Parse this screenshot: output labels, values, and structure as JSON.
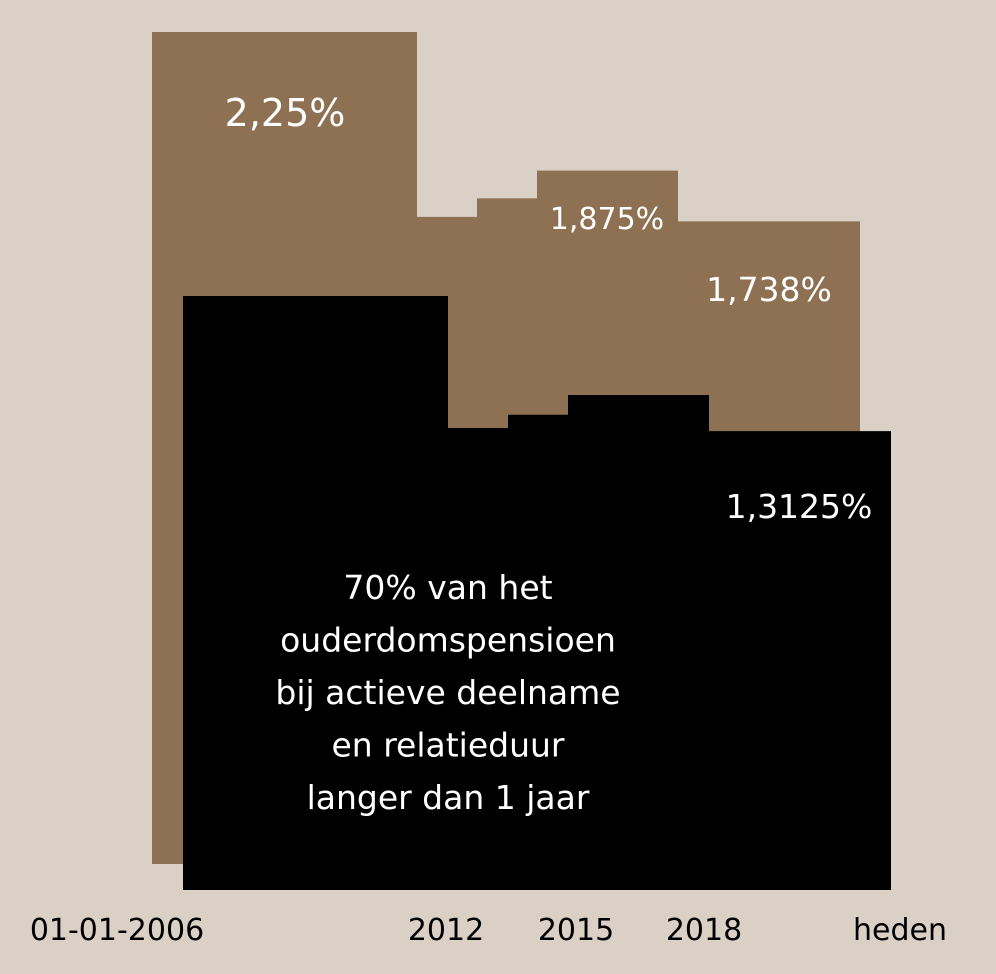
{
  "chart_data": {
    "type": "area",
    "title": "",
    "xlabel": "",
    "ylabel": "",
    "x_labels": [
      "01-01-2006",
      "2012",
      "2015",
      "2018",
      "heden"
    ],
    "series": [
      {
        "name": "",
        "color": "#8e7152",
        "steps": [
          {
            "from": "01-01-2006",
            "to": "2011",
            "value": 2.25
          },
          {
            "from": "2011",
            "to": "2013",
            "value": 1.75
          },
          {
            "from": "2013",
            "to": "2014",
            "value": 1.8
          },
          {
            "from": "2014",
            "to": "2017",
            "value": 1.875
          },
          {
            "from": "2017",
            "to": "heden",
            "value": 1.738
          }
        ]
      },
      {
        "name": "",
        "color": "#000000",
        "steps": [
          {
            "from": "01-01-2006",
            "to": "2011",
            "value": 1.575
          },
          {
            "from": "2011",
            "to": "2013",
            "value": 1.225
          },
          {
            "from": "2013",
            "to": "2014",
            "value": 1.26
          },
          {
            "from": "2014",
            "to": "2017",
            "value": 1.3125
          },
          {
            "from": "2017",
            "to": "heden",
            "value": 1.2166
          }
        ]
      }
    ],
    "value_labels": [
      "2,25%",
      "1,875%",
      "1,738%",
      "1,3125%"
    ],
    "annotation": "70% van het\nouderdomspensioen\nbij actieve deelname\nen relatieduur\nlanger dan 1 jaar"
  },
  "colors": {
    "background": "#dbd0c5",
    "brown": "#8e7152",
    "black": "#000000",
    "label_text": "#ffffff",
    "axis_text": "#000000"
  }
}
